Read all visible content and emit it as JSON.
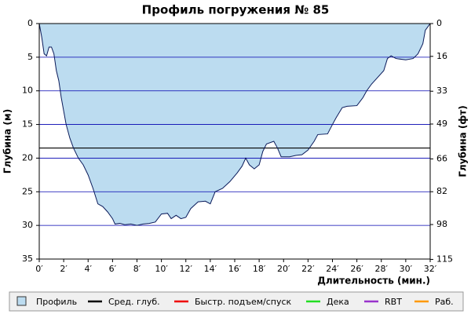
{
  "chart_data": {
    "type": "area",
    "title": "Профиль погружения № 85",
    "x_label": "Длительность (мин.)",
    "y_label": "Глубина (м)",
    "y2_label": "Глубина (фт)",
    "xlim": [
      0,
      32
    ],
    "ylim": [
      0,
      35
    ],
    "y_inverted": true,
    "y2lim": [
      0,
      114.83
    ],
    "xticks": [
      {
        "value": 0,
        "label": "0′"
      },
      {
        "value": 2,
        "label": "2′"
      },
      {
        "value": 4,
        "label": "4′"
      },
      {
        "value": 6,
        "label": "6′"
      },
      {
        "value": 8,
        "label": "8′"
      },
      {
        "value": 10,
        "label": "10′"
      },
      {
        "value": 12,
        "label": "12′"
      },
      {
        "value": 14,
        "label": "14′"
      },
      {
        "value": 16,
        "label": "16′"
      },
      {
        "value": 18,
        "label": "18′"
      },
      {
        "value": 20,
        "label": "20′"
      },
      {
        "value": 22,
        "label": "22′"
      },
      {
        "value": 24,
        "label": "24′"
      },
      {
        "value": 26,
        "label": "26′"
      },
      {
        "value": 28,
        "label": "28′"
      },
      {
        "value": 30,
        "label": "30′"
      },
      {
        "value": 32,
        "label": "32′"
      }
    ],
    "yticks": [
      0,
      5,
      10,
      15,
      20,
      25,
      30,
      35
    ],
    "y2ticks": [
      0,
      16,
      33,
      49,
      66,
      82,
      98,
      115
    ],
    "grid": true,
    "grid_color": "#0000b0",
    "series": [
      {
        "name": "Профиль",
        "color": "#bcdcf0",
        "line_color": "#0a1a5a",
        "x": [
          0,
          0.2,
          0.4,
          0.6,
          0.8,
          1.0,
          1.2,
          1.4,
          1.6,
          1.8,
          2.0,
          2.2,
          2.5,
          2.8,
          3.2,
          3.6,
          4.0,
          4.4,
          4.8,
          5.2,
          5.6,
          6.0,
          6.2,
          6.6,
          7.0,
          7.5,
          8.0,
          8.5,
          9.0,
          9.5,
          10.0,
          10.5,
          10.8,
          11.2,
          11.6,
          12.0,
          12.4,
          13.0,
          13.6,
          14.0,
          14.4,
          15.0,
          15.6,
          16.2,
          16.6,
          16.9,
          17.2,
          17.6,
          18.0,
          18.3,
          18.6,
          19.2,
          19.5,
          19.8,
          20.5,
          21.0,
          21.5,
          22.0,
          22.5,
          22.8,
          23.6,
          24.0,
          24.3,
          24.8,
          25.2,
          26.0,
          26.5,
          26.8,
          27.2,
          27.6,
          28.2,
          28.5,
          28.8,
          29.2,
          30.0,
          30.6,
          31.0,
          31.4,
          31.6,
          31.8,
          32
        ],
        "values": [
          0,
          2,
          4.5,
          4.8,
          3.5,
          3.5,
          4.5,
          7,
          8.5,
          11,
          13,
          15,
          17,
          18.5,
          20,
          21,
          22.5,
          24.5,
          26.8,
          27.2,
          28,
          29,
          29.8,
          29.7,
          29.9,
          29.8,
          30,
          29.8,
          29.7,
          29.5,
          28.3,
          28.2,
          29,
          28.5,
          29,
          28.8,
          27.5,
          26.5,
          26.4,
          26.8,
          25,
          24.5,
          23.5,
          22.2,
          21.2,
          20,
          21,
          21.6,
          21,
          19,
          17.9,
          17.5,
          18.5,
          19.8,
          19.8,
          19.6,
          19.5,
          18.8,
          17.5,
          16.5,
          16.4,
          15,
          14,
          12.5,
          12.3,
          12.2,
          11,
          10,
          9,
          8.2,
          7,
          5.2,
          4.8,
          5.2,
          5.4,
          5.2,
          4.5,
          3,
          1,
          0.5,
          0
        ]
      },
      {
        "name": "Сред. глуб.",
        "color": "#000000",
        "value": 18.5
      },
      {
        "name": "Быстр. подъем/спуск",
        "color": "#ee0000"
      },
      {
        "name": "Дека",
        "color": "#22dd22"
      },
      {
        "name": "RBT",
        "color": "#9933cc"
      },
      {
        "name": "Раб.",
        "color": "#ff9900"
      }
    ]
  }
}
